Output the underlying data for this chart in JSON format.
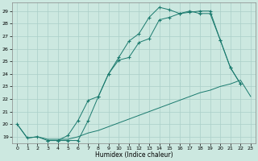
{
  "xlabel": "Humidex (Indice chaleur)",
  "bg_color": "#cce8e0",
  "line_color": "#1a7a6e",
  "grid_color": "#aacfc8",
  "xlim": [
    -0.5,
    23.5
  ],
  "ylim": [
    18.5,
    29.7
  ],
  "xticks": [
    0,
    1,
    2,
    3,
    4,
    5,
    6,
    7,
    8,
    9,
    10,
    11,
    12,
    13,
    14,
    15,
    16,
    17,
    18,
    19,
    20,
    21,
    22,
    23
  ],
  "yticks": [
    19,
    20,
    21,
    22,
    23,
    24,
    25,
    26,
    27,
    28,
    29
  ],
  "line1_x": [
    0,
    1,
    2,
    3,
    4,
    5,
    6,
    7,
    8,
    9,
    10,
    11,
    12,
    13,
    14,
    15,
    16,
    17,
    18,
    19,
    20,
    21,
    22,
    23
  ],
  "line1_y": [
    20.0,
    18.9,
    19.0,
    18.8,
    18.8,
    18.8,
    19.0,
    19.3,
    19.5,
    19.8,
    20.1,
    20.4,
    20.7,
    21.0,
    21.3,
    21.6,
    21.9,
    22.2,
    22.5,
    22.7,
    23.0,
    23.2,
    23.5,
    22.2
  ],
  "line2_x": [
    0,
    1,
    2,
    3,
    4,
    5,
    6,
    7,
    8,
    9,
    10,
    11,
    12,
    13,
    14,
    15,
    16,
    17,
    18,
    19,
    20,
    21,
    22
  ],
  "line2_y": [
    20.0,
    18.9,
    19.0,
    18.7,
    18.7,
    19.1,
    20.3,
    21.9,
    22.2,
    24.0,
    25.1,
    25.3,
    26.5,
    26.8,
    28.3,
    28.5,
    28.8,
    29.0,
    28.8,
    28.8,
    26.7,
    24.5,
    23.2
  ],
  "line3_x": [
    3,
    4,
    5,
    6,
    7,
    8,
    9,
    10,
    11,
    12,
    13,
    14,
    15,
    16,
    17,
    18,
    19,
    20,
    21,
    22
  ],
  "line3_y": [
    18.7,
    18.7,
    18.7,
    18.7,
    20.3,
    22.2,
    24.0,
    25.3,
    26.6,
    27.2,
    28.5,
    29.3,
    29.1,
    28.8,
    28.9,
    29.0,
    29.0,
    26.7,
    24.5,
    23.2
  ]
}
